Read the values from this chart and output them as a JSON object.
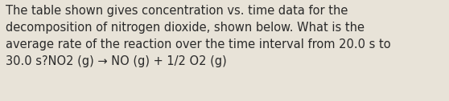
{
  "text": "The table shown gives concentration vs. time data for the\ndecomposition of nitrogen dioxide, shown below. What is the\naverage rate of the reaction over the time interval from 20.0 s to\n30.0 s?NO2 (g) → NO (g) + 1/2 O2 (g)",
  "background_color": "#e8e3d8",
  "text_color": "#2a2a2a",
  "font_size": 10.5,
  "fig_width": 5.58,
  "fig_height": 1.26,
  "font_weight": "normal",
  "linespacing": 1.5
}
